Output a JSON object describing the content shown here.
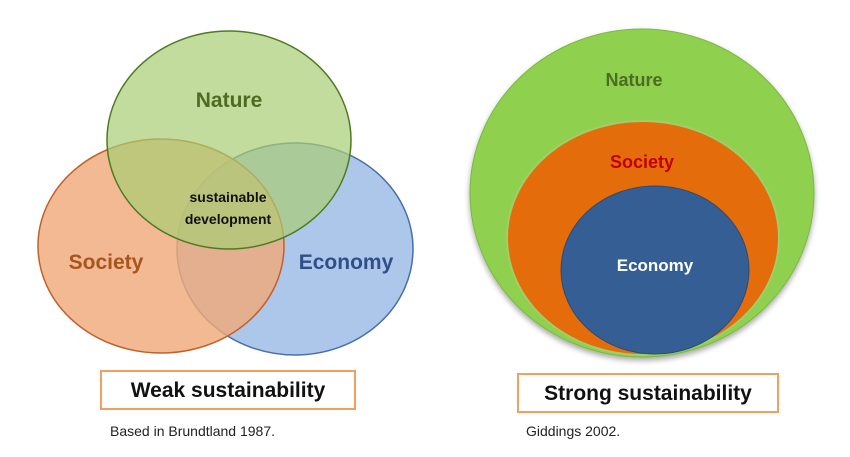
{
  "weak_model": {
    "circles": {
      "nature": "Nature",
      "society": "Society",
      "economy": "Economy"
    },
    "center_line1": "sustainable",
    "center_line2": "development",
    "title": "Weak sustainability",
    "source": "Based in Brundtland 1987."
  },
  "strong_model": {
    "circles": {
      "nature": "Nature",
      "society": "Society",
      "economy": "Economy"
    },
    "title": "Strong sustainability",
    "source": "Giddings 2002."
  },
  "colors": {
    "nature_fill": "#b5d48a",
    "nature_stroke": "#4e7a23",
    "society_fill": "#f0a97a",
    "society_stroke": "#c0612a",
    "economy_fill": "#a9c4ea",
    "economy_stroke": "#4a6fa8",
    "nature_text": "#4e6b22",
    "society_text": "#a8541e",
    "economy_text": "#2e4f87",
    "strong_nature_fill": "#8fd14f",
    "strong_society_fill": "#e46c0a",
    "strong_economy_fill": "#355f94",
    "strong_society_text": "#c00000"
  }
}
